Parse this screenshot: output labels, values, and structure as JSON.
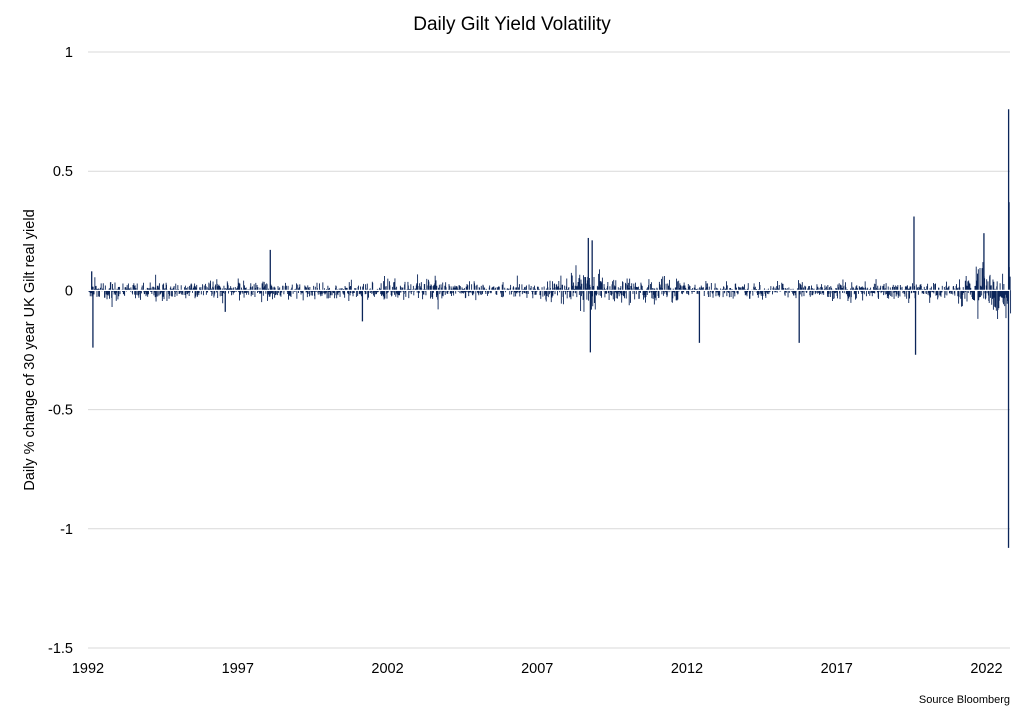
{
  "chart_data": {
    "type": "bar",
    "title": "Daily Gilt Yield Volatility",
    "ylabel": "Daily % change of 30 year UK Gilt real yield",
    "xlabel": "",
    "source": "Source Bloomberg",
    "ylim": [
      -1.5,
      1
    ],
    "yticks": [
      1,
      0.5,
      0,
      -0.5,
      -1,
      -1.5
    ],
    "ytick_labels": [
      "1",
      "0.5",
      "0",
      "-0.5",
      "-1",
      "-1.5"
    ],
    "xlim": [
      "1992-01-01",
      "2022-10-15"
    ],
    "xticks": [
      "1992",
      "1997",
      "2002",
      "2007",
      "2012",
      "2017",
      "2022"
    ],
    "grid": "horizontal",
    "series_color": "#0b2559",
    "grid_color": "#d9d9d9",
    "spikes": [
      {
        "date": "1992-03-01",
        "value": -0.24
      },
      {
        "date": "1992-02-15",
        "value": 0.08
      },
      {
        "date": "1998-02-01",
        "value": 0.17
      },
      {
        "date": "1996-08-01",
        "value": -0.09
      },
      {
        "date": "2001-03-01",
        "value": -0.13
      },
      {
        "date": "2008-09-15",
        "value": 0.22
      },
      {
        "date": "2008-11-01",
        "value": 0.21
      },
      {
        "date": "2008-10-10",
        "value": -0.26
      },
      {
        "date": "2012-06-01",
        "value": -0.22
      },
      {
        "date": "2015-10-01",
        "value": -0.22
      },
      {
        "date": "2019-08-01",
        "value": 0.31
      },
      {
        "date": "2019-08-20",
        "value": -0.27
      },
      {
        "date": "2021-12-01",
        "value": 0.24
      },
      {
        "date": "2022-09-28",
        "value": 0.76
      },
      {
        "date": "2022-10-03",
        "value": 0.37
      },
      {
        "date": "2022-09-27",
        "value": -1.08
      }
    ]
  }
}
